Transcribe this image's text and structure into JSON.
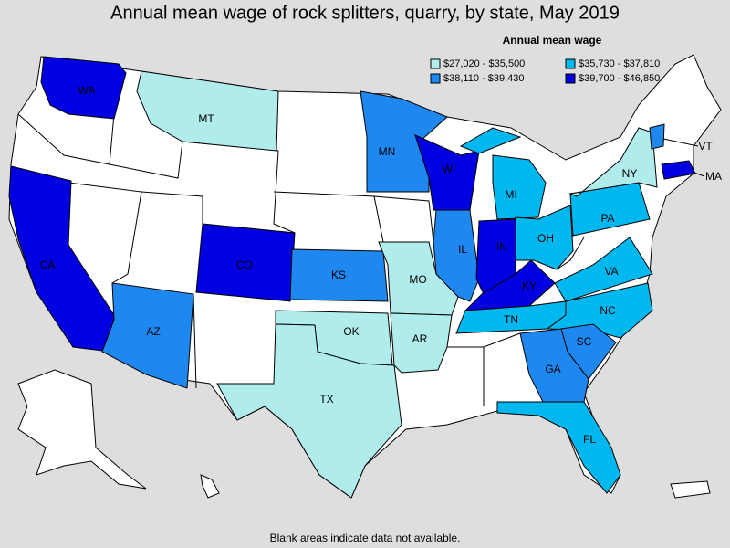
{
  "title": "Annual mean wage of rock splitters, quarry, by state, May 2019",
  "legend": {
    "title": "Annual mean wage",
    "items": [
      {
        "label": "$27,020 - $35,500",
        "color": "#b0ecec"
      },
      {
        "label": "$35,730 - $37,810",
        "color": "#00b8f0"
      },
      {
        "label": "$38,110 - $39,430",
        "color": "#1e88f0"
      },
      {
        "label": "$39,700 - $46,850",
        "color": "#0000e0"
      }
    ]
  },
  "states": [
    {
      "label": "WA",
      "bin": 3
    },
    {
      "label": "CA",
      "bin": 3
    },
    {
      "label": "MT",
      "bin": 0
    },
    {
      "label": "CO",
      "bin": 3
    },
    {
      "label": "AZ",
      "bin": 2
    },
    {
      "label": "KS",
      "bin": 2
    },
    {
      "label": "OK",
      "bin": 0
    },
    {
      "label": "TX",
      "bin": 0
    },
    {
      "label": "MO",
      "bin": 0
    },
    {
      "label": "AR",
      "bin": 0
    },
    {
      "label": "MN",
      "bin": 2
    },
    {
      "label": "WI",
      "bin": 3
    },
    {
      "label": "IL",
      "bin": 2
    },
    {
      "label": "IN",
      "bin": 3
    },
    {
      "label": "KY",
      "bin": 3
    },
    {
      "label": "TN",
      "bin": 1
    },
    {
      "label": "MI",
      "bin": 1
    },
    {
      "label": "OH",
      "bin": 1
    },
    {
      "label": "PA",
      "bin": 1
    },
    {
      "label": "NY",
      "bin": 0
    },
    {
      "label": "VA",
      "bin": 1
    },
    {
      "label": "NC",
      "bin": 1
    },
    {
      "label": "SC",
      "bin": 2
    },
    {
      "label": "GA",
      "bin": 2
    },
    {
      "label": "FL",
      "bin": 1
    },
    {
      "label": "VT",
      "bin": 2
    },
    {
      "label": "MA",
      "bin": 3
    }
  ],
  "footnote": "Blank areas indicate data not available."
}
